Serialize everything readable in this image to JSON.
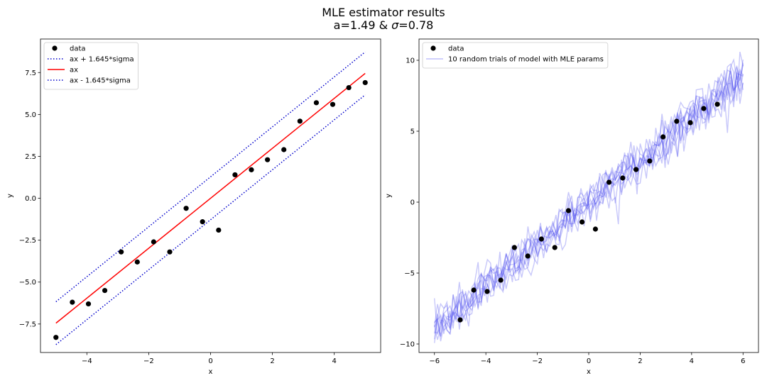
{
  "figure": {
    "title_line1": "MLE estimator results",
    "title_line2_prefix": "a=1.49 & ",
    "title_line2_symbol": "σ",
    "title_line2_suffix": "=0.78"
  },
  "chart_data": [
    {
      "type": "line",
      "xlabel": "x",
      "ylabel": "y",
      "xlim": [
        -5.5,
        5.5
      ],
      "ylim": [
        -9.2,
        9.5
      ],
      "xticks": [
        -4,
        -2,
        0,
        2,
        4
      ],
      "xtick_labels": [
        "−4",
        "−2",
        "0",
        "2",
        "4"
      ],
      "yticks": [
        -7.5,
        -5.0,
        -2.5,
        0.0,
        2.5,
        5.0,
        7.5
      ],
      "ytick_labels": [
        "−7.5",
        "−5.0",
        "−2.5",
        "0.0",
        "2.5",
        "5.0",
        "7.5"
      ],
      "legend_position": "top-left",
      "colors": {
        "data": "#000000",
        "fit": "#ff0000",
        "band": "#0000cc"
      },
      "data": {
        "name": "data",
        "x": [
          -5.0,
          -4.47,
          -3.95,
          -3.42,
          -2.89,
          -2.37,
          -1.84,
          -1.32,
          -0.79,
          -0.26,
          0.26,
          0.79,
          1.32,
          1.84,
          2.37,
          2.89,
          3.42,
          3.95,
          4.47,
          5.0
        ],
        "y": [
          -8.3,
          -6.2,
          -6.3,
          -5.5,
          -3.2,
          -3.8,
          -2.6,
          -3.2,
          -0.6,
          -1.4,
          -1.9,
          1.4,
          1.7,
          2.3,
          2.9,
          4.6,
          5.7,
          5.6,
          6.6,
          6.9
        ]
      },
      "lines": [
        {
          "name": "ax + 1.645*sigma",
          "x": [
            -5,
            5
          ],
          "y": [
            -6.17,
            8.73
          ],
          "style": "dotted",
          "color": "#0000cc"
        },
        {
          "name": "ax",
          "x": [
            -5,
            5
          ],
          "y": [
            -7.45,
            7.45
          ],
          "style": "solid",
          "color": "#ff0000"
        },
        {
          "name": "ax - 1.645*sigma",
          "x": [
            -5,
            5
          ],
          "y": [
            -8.73,
            6.17
          ],
          "style": "dotted",
          "color": "#0000cc"
        }
      ]
    },
    {
      "type": "line",
      "xlabel": "x",
      "ylabel": "y",
      "xlim": [
        -6.6,
        6.6
      ],
      "ylim": [
        -10.6,
        11.5
      ],
      "xticks": [
        -6,
        -4,
        -2,
        0,
        2,
        4,
        6
      ],
      "xtick_labels": [
        "−6",
        "−4",
        "−2",
        "0",
        "2",
        "4",
        "6"
      ],
      "yticks": [
        -10,
        -5,
        0,
        5,
        10
      ],
      "ytick_labels": [
        "−10",
        "−5",
        "0",
        "5",
        "10"
      ],
      "legend_position": "top-left",
      "colors": {
        "data": "#000000",
        "trials": "#4a4af0"
      },
      "data": {
        "name": "data",
        "x": [
          -5.0,
          -4.47,
          -3.95,
          -3.42,
          -2.89,
          -2.37,
          -1.84,
          -1.32,
          -0.79,
          -0.26,
          0.26,
          0.79,
          1.32,
          1.84,
          2.37,
          2.89,
          3.42,
          3.95,
          4.47,
          5.0
        ],
        "y": [
          -8.3,
          -6.2,
          -6.3,
          -5.5,
          -3.2,
          -3.8,
          -2.6,
          -3.2,
          -0.6,
          -1.4,
          -1.9,
          1.4,
          1.7,
          2.3,
          2.9,
          4.6,
          5.7,
          5.6,
          6.6,
          6.9
        ]
      },
      "trials": {
        "name": "10 random trials of model with MLE params",
        "count": 10,
        "x_range": [
          -6,
          6
        ],
        "slope": 1.49,
        "sigma": 0.78,
        "n_points": 100
      }
    }
  ]
}
